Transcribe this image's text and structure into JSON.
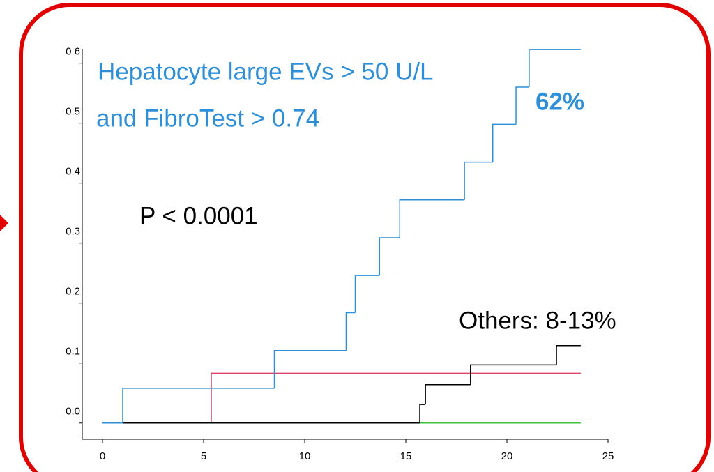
{
  "chart_data": {
    "type": "step",
    "annotations": [
      "Hepatocyte large EVs > 50 U/L",
      "and FibroTest > 0.74",
      "62%",
      "P < 0.0001",
      "Others: 8-13%"
    ],
    "xlim": [
      -1,
      25
    ],
    "ylim": [
      -0.027,
      0.624
    ],
    "xticks": [
      0,
      5,
      10,
      15,
      20,
      25
    ],
    "yticks": [
      {
        "value": 0,
        "label": "0.0"
      },
      0.1,
      0.2,
      0.3,
      0.4,
      0.5,
      0.6
    ],
    "series": [
      {
        "color": "#2e8fd8",
        "x": [
          0,
          1,
          8.5,
          12.05,
          12.5,
          13.7,
          14.7,
          17.9,
          19.3,
          20.45,
          21.1,
          23.65
        ],
        "values": [
          0,
          0.058,
          0.121,
          0.184,
          0.246,
          0.309,
          0.372,
          0.435,
          0.498,
          0.56,
          0.623,
          0.623
        ]
      },
      {
        "color": "#e0436a",
        "x": [
          0,
          5.38,
          23.65
        ],
        "values": [
          0,
          0.083,
          0.083
        ]
      },
      {
        "color": "#000000",
        "x": [
          0,
          15.69,
          15.97,
          18.2,
          22.45,
          23.65
        ],
        "values": [
          0,
          0.031,
          0.064,
          0.097,
          0.129,
          0.129
        ]
      },
      {
        "color": "#3cc43c",
        "x": [
          0,
          23.65
        ],
        "values": [
          0,
          0
        ]
      }
    ]
  }
}
